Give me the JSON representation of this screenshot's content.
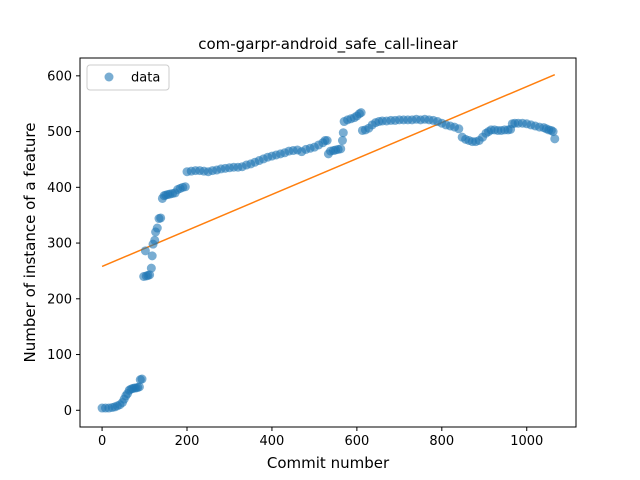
{
  "chart_data": {
    "type": "scatter",
    "title": "com-garpr-android_safe_call-linear",
    "xlabel": "Commit number",
    "ylabel": "Number of instance of a feature",
    "xlim": [
      -52,
      1116
    ],
    "ylim": [
      -30,
      632
    ],
    "xticks": [
      0,
      200,
      400,
      600,
      800,
      1000
    ],
    "yticks": [
      0,
      100,
      200,
      300,
      400,
      500,
      600
    ],
    "grid": false,
    "legend": {
      "position": "top-left",
      "entries": [
        "data"
      ]
    },
    "colors": {
      "data": "#1f77b4",
      "fit": "#ff7f0e"
    },
    "series": [
      {
        "name": "data",
        "points": [
          [
            0,
            4
          ],
          [
            8,
            4
          ],
          [
            16,
            4
          ],
          [
            24,
            5
          ],
          [
            30,
            6
          ],
          [
            36,
            8
          ],
          [
            42,
            10
          ],
          [
            48,
            14
          ],
          [
            52,
            20
          ],
          [
            56,
            26
          ],
          [
            60,
            30
          ],
          [
            64,
            36
          ],
          [
            68,
            38
          ],
          [
            72,
            39
          ],
          [
            76,
            40
          ],
          [
            80,
            40
          ],
          [
            84,
            41
          ],
          [
            88,
            42
          ],
          [
            90,
            55
          ],
          [
            94,
            56
          ],
          [
            98,
            240
          ],
          [
            102,
            286
          ],
          [
            104,
            241
          ],
          [
            108,
            242
          ],
          [
            112,
            243
          ],
          [
            116,
            255
          ],
          [
            118,
            277
          ],
          [
            120,
            298
          ],
          [
            124,
            305
          ],
          [
            126,
            320
          ],
          [
            130,
            327
          ],
          [
            134,
            344
          ],
          [
            138,
            345
          ],
          [
            142,
            380
          ],
          [
            146,
            385
          ],
          [
            150,
            386
          ],
          [
            155,
            387
          ],
          [
            160,
            388
          ],
          [
            166,
            389
          ],
          [
            172,
            390
          ],
          [
            178,
            396
          ],
          [
            184,
            398
          ],
          [
            190,
            400
          ],
          [
            196,
            401
          ],
          [
            200,
            428
          ],
          [
            210,
            429
          ],
          [
            220,
            430
          ],
          [
            230,
            430
          ],
          [
            240,
            429
          ],
          [
            250,
            428
          ],
          [
            260,
            430
          ],
          [
            270,
            431
          ],
          [
            280,
            433
          ],
          [
            290,
            434
          ],
          [
            300,
            435
          ],
          [
            310,
            436
          ],
          [
            320,
            436
          ],
          [
            330,
            437
          ],
          [
            340,
            440
          ],
          [
            350,
            442
          ],
          [
            360,
            445
          ],
          [
            370,
            448
          ],
          [
            380,
            451
          ],
          [
            390,
            454
          ],
          [
            400,
            456
          ],
          [
            410,
            458
          ],
          [
            420,
            460
          ],
          [
            430,
            462
          ],
          [
            440,
            465
          ],
          [
            450,
            466
          ],
          [
            460,
            467
          ],
          [
            470,
            464
          ],
          [
            480,
            468
          ],
          [
            490,
            470
          ],
          [
            500,
            472
          ],
          [
            510,
            476
          ],
          [
            520,
            480
          ],
          [
            525,
            484
          ],
          [
            530,
            484
          ],
          [
            533,
            460
          ],
          [
            538,
            465
          ],
          [
            545,
            466
          ],
          [
            550,
            467
          ],
          [
            556,
            468
          ],
          [
            562,
            469
          ],
          [
            566,
            484
          ],
          [
            568,
            498
          ],
          [
            570,
            518
          ],
          [
            578,
            521
          ],
          [
            586,
            523
          ],
          [
            594,
            525
          ],
          [
            600,
            528
          ],
          [
            606,
            532
          ],
          [
            610,
            534
          ],
          [
            613,
            502
          ],
          [
            620,
            503
          ],
          [
            628,
            506
          ],
          [
            636,
            512
          ],
          [
            644,
            516
          ],
          [
            652,
            518
          ],
          [
            660,
            519
          ],
          [
            670,
            519
          ],
          [
            680,
            520
          ],
          [
            690,
            520
          ],
          [
            700,
            521
          ],
          [
            710,
            521
          ],
          [
            720,
            521
          ],
          [
            730,
            521
          ],
          [
            740,
            522
          ],
          [
            750,
            521
          ],
          [
            760,
            522
          ],
          [
            770,
            521
          ],
          [
            780,
            520
          ],
          [
            790,
            518
          ],
          [
            800,
            515
          ],
          [
            810,
            512
          ],
          [
            820,
            510
          ],
          [
            830,
            508
          ],
          [
            840,
            505
          ],
          [
            848,
            490
          ],
          [
            856,
            486
          ],
          [
            864,
            484
          ],
          [
            872,
            482
          ],
          [
            880,
            482
          ],
          [
            888,
            484
          ],
          [
            896,
            490
          ],
          [
            904,
            497
          ],
          [
            910,
            500
          ],
          [
            916,
            503
          ],
          [
            924,
            503
          ],
          [
            932,
            502
          ],
          [
            940,
            502
          ],
          [
            948,
            503
          ],
          [
            956,
            503
          ],
          [
            962,
            504
          ],
          [
            966,
            514
          ],
          [
            972,
            515
          ],
          [
            980,
            515
          ],
          [
            990,
            515
          ],
          [
            1000,
            514
          ],
          [
            1010,
            512
          ],
          [
            1020,
            510
          ],
          [
            1030,
            508
          ],
          [
            1040,
            507
          ],
          [
            1046,
            505
          ],
          [
            1052,
            503
          ],
          [
            1058,
            502
          ],
          [
            1062,
            500
          ],
          [
            1066,
            487
          ]
        ]
      },
      {
        "name": "fit",
        "line": [
          [
            0,
            258
          ],
          [
            1066,
            602
          ]
        ]
      }
    ]
  }
}
